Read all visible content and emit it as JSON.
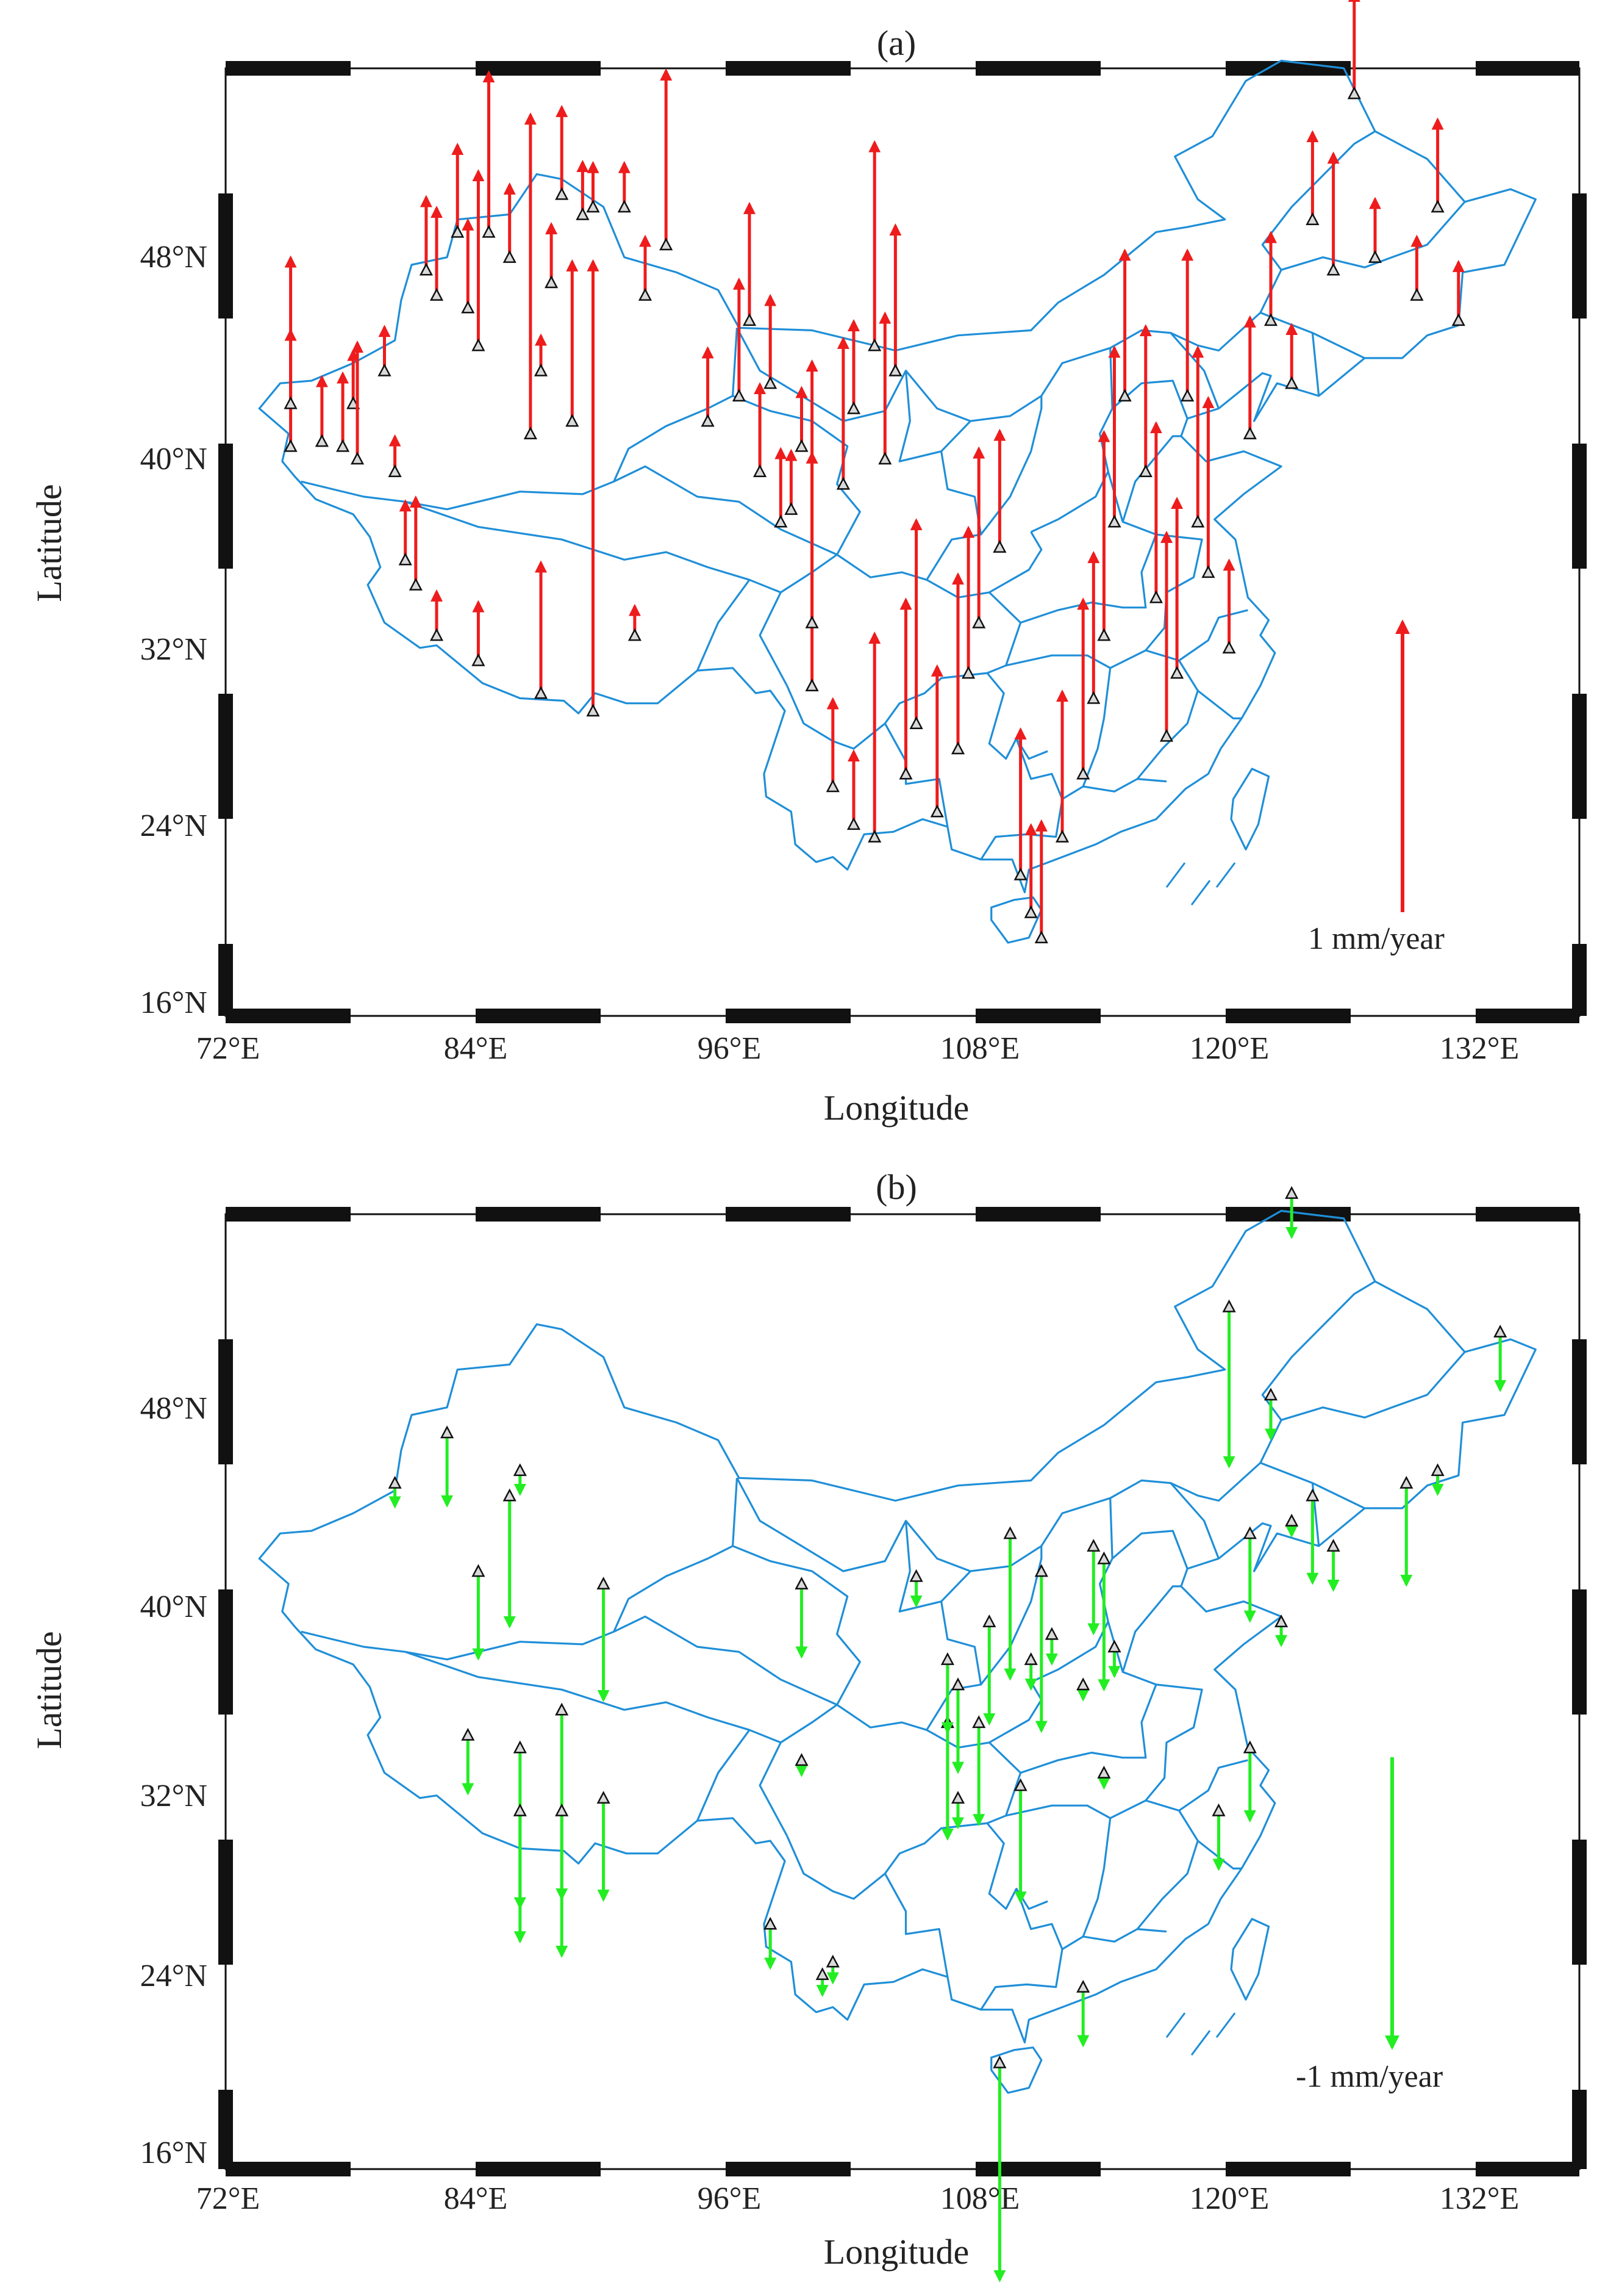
{
  "panels": [
    {
      "id": "a",
      "label": "(a)",
      "xlabel": "Longitude",
      "ylabel": "Latitude",
      "xticks": [
        "72°E",
        "84°E",
        "96°E",
        "108°E",
        "120°E",
        "132°E"
      ],
      "yticks": [
        "16°N",
        "24°N",
        "32°N",
        "40°N",
        "48°N"
      ],
      "scale_label": "1 mm/year",
      "arrow_color": "#ee1c1c",
      "direction": "up",
      "scale_mm": 1
    },
    {
      "id": "b",
      "label": "(b)",
      "xlabel": "Longitude",
      "ylabel": "Latitude",
      "xticks": [
        "72°E",
        "84°E",
        "96°E",
        "108°E",
        "120°E",
        "132°E"
      ],
      "yticks": [
        "16°N",
        "24°N",
        "32°N",
        "40°N",
        "48°N"
      ],
      "scale_label": "-1 mm/year",
      "arrow_color": "#22ee22",
      "direction": "down",
      "scale_mm": -1
    }
  ],
  "map_extent": {
    "lon": [
      70,
      135
    ],
    "lat": [
      15.5,
      55.5
    ]
  },
  "colors": {
    "boundary": "#1f8fd8",
    "uplift_arrow": "#ee1c1c",
    "subsidence_arrow": "#22ee22",
    "station_marker": "#d9d9d9"
  },
  "chart_data": [
    {
      "type": "scatter",
      "title": "(a)",
      "xlabel": "Longitude",
      "ylabel": "Latitude",
      "units": "mm/year",
      "scale_arrow": "1 mm/year",
      "stations": [
        [
          75.0,
          38.0,
          0.65
        ],
        [
          75.0,
          39.7,
          0.25
        ],
        [
          76.5,
          38.2,
          0.22
        ],
        [
          77.5,
          38.0,
          0.25
        ],
        [
          78.0,
          39.7,
          0.18
        ],
        [
          78.2,
          37.5,
          0.4
        ],
        [
          79.5,
          41.0,
          0.15
        ],
        [
          80.0,
          37.0,
          0.12
        ],
        [
          81.5,
          45.0,
          0.25
        ],
        [
          82.0,
          44.0,
          0.3
        ],
        [
          83.0,
          46.5,
          0.3
        ],
        [
          83.5,
          43.5,
          0.3
        ],
        [
          84.0,
          42.0,
          0.6
        ],
        [
          84.5,
          46.5,
          0.55
        ],
        [
          85.5,
          45.5,
          0.25
        ],
        [
          86.5,
          38.5,
          1.1
        ],
        [
          87.0,
          41.0,
          0.12
        ],
        [
          87.5,
          44.5,
          0.2
        ],
        [
          88.0,
          48.0,
          0.3
        ],
        [
          88.5,
          39.0,
          0.55
        ],
        [
          89.0,
          47.2,
          0.18
        ],
        [
          89.5,
          47.5,
          0.15
        ],
        [
          91.0,
          47.5,
          0.15
        ],
        [
          92.0,
          44.0,
          0.2
        ],
        [
          93.0,
          46.0,
          0.6
        ],
        [
          80.5,
          33.5,
          0.2
        ],
        [
          81.0,
          32.5,
          0.3
        ],
        [
          82.0,
          30.5,
          0.15
        ],
        [
          84.0,
          29.5,
          0.2
        ],
        [
          87.0,
          28.2,
          0.45
        ],
        [
          89.5,
          27.5,
          1.55
        ],
        [
          91.5,
          30.5,
          0.1
        ],
        [
          95.0,
          39.0,
          0.25
        ],
        [
          96.5,
          40.0,
          0.4
        ],
        [
          97.0,
          43.0,
          0.4
        ],
        [
          97.5,
          37.0,
          0.3
        ],
        [
          98.0,
          40.5,
          0.3
        ],
        [
          98.5,
          35.0,
          0.25
        ],
        [
          99.0,
          35.5,
          0.2
        ],
        [
          99.5,
          38.0,
          0.2
        ],
        [
          100.0,
          28.5,
          0.8
        ],
        [
          100.0,
          31.0,
          0.9
        ],
        [
          101.5,
          36.5,
          0.5
        ],
        [
          102.0,
          39.5,
          0.3
        ],
        [
          103.0,
          42.0,
          0.7
        ],
        [
          103.5,
          37.5,
          0.5
        ],
        [
          104.0,
          41.0,
          0.5
        ],
        [
          101.0,
          24.5,
          0.3
        ],
        [
          102.0,
          23.0,
          0.25
        ],
        [
          103.0,
          22.5,
          0.7
        ],
        [
          104.5,
          25.0,
          0.6
        ],
        [
          105.0,
          27.0,
          0.7
        ],
        [
          106.0,
          23.5,
          0.5
        ],
        [
          107.0,
          26.0,
          0.6
        ],
        [
          107.5,
          29.0,
          0.5
        ],
        [
          108.0,
          31.0,
          0.6
        ],
        [
          109.0,
          34.0,
          0.4
        ],
        [
          110.0,
          21.0,
          0.5
        ],
        [
          110.5,
          19.5,
          0.3
        ],
        [
          111.0,
          18.5,
          0.4
        ],
        [
          112.0,
          22.5,
          0.5
        ],
        [
          113.0,
          25.0,
          0.6
        ],
        [
          113.5,
          28.0,
          0.5
        ],
        [
          114.0,
          30.5,
          0.7
        ],
        [
          114.5,
          35.0,
          0.6
        ],
        [
          115.0,
          40.0,
          0.5
        ],
        [
          116.0,
          37.0,
          0.5
        ],
        [
          116.5,
          32.0,
          0.6
        ],
        [
          117.0,
          26.5,
          0.7
        ],
        [
          117.5,
          29.0,
          0.6
        ],
        [
          118.0,
          40.0,
          0.5
        ],
        [
          118.5,
          35.0,
          0.6
        ],
        [
          119.0,
          33.0,
          0.6
        ],
        [
          120.0,
          30.0,
          0.3
        ],
        [
          121.0,
          38.5,
          0.4
        ],
        [
          122.0,
          43.0,
          0.3
        ],
        [
          123.0,
          40.5,
          0.2
        ],
        [
          124.0,
          47.0,
          0.3
        ],
        [
          125.0,
          45.0,
          0.4
        ],
        [
          126.0,
          52.0,
          0.35
        ],
        [
          127.0,
          45.5,
          0.2
        ],
        [
          129.0,
          44.0,
          0.2
        ],
        [
          130.0,
          47.5,
          0.3
        ],
        [
          131.0,
          43.0,
          0.2
        ]
      ]
    },
    {
      "type": "scatter",
      "title": "(b)",
      "xlabel": "Longitude",
      "ylabel": "Latitude",
      "units": "mm/year",
      "scale_arrow": "-1 mm/year",
      "stations": [
        [
          80.0,
          42.5,
          -0.08
        ],
        [
          82.5,
          44.5,
          -0.25
        ],
        [
          84.0,
          39.0,
          -0.3
        ],
        [
          85.5,
          42.0,
          -0.45
        ],
        [
          86.0,
          43.0,
          -0.08
        ],
        [
          83.5,
          32.5,
          -0.2
        ],
        [
          86.0,
          32.0,
          -0.55
        ],
        [
          86.0,
          29.5,
          -0.45
        ],
        [
          88.0,
          33.5,
          -0.65
        ],
        [
          88.0,
          29.5,
          -0.5
        ],
        [
          90.0,
          30.0,
          -0.35
        ],
        [
          90.0,
          38.5,
          -0.4
        ],
        [
          98.0,
          25.0,
          -0.15
        ],
        [
          99.5,
          38.5,
          -0.25
        ],
        [
          99.5,
          31.5,
          -0.05
        ],
        [
          100.5,
          23.0,
          -0.07
        ],
        [
          101.0,
          23.5,
          -0.07
        ],
        [
          105.0,
          38.8,
          -0.1
        ],
        [
          106.5,
          33.0,
          -0.4
        ],
        [
          106.5,
          35.5,
          -0.25
        ],
        [
          107.0,
          30.0,
          -0.1
        ],
        [
          107.0,
          34.5,
          -0.3
        ],
        [
          108.0,
          33.0,
          -0.35
        ],
        [
          108.5,
          37.0,
          -0.35
        ],
        [
          109.5,
          40.5,
          -0.5
        ],
        [
          109.0,
          19.5,
          -0.75
        ],
        [
          110.0,
          30.5,
          -0.4
        ],
        [
          110.5,
          35.5,
          -0.1
        ],
        [
          111.0,
          39.0,
          -0.55
        ],
        [
          111.5,
          36.5,
          -0.1
        ],
        [
          113.0,
          34.5,
          -0.05
        ],
        [
          113.0,
          22.5,
          -0.2
        ],
        [
          113.5,
          40.0,
          -0.3
        ],
        [
          114.0,
          39.5,
          -0.45
        ],
        [
          114.5,
          36.0,
          -0.1
        ],
        [
          114.0,
          31.0,
          -0.05
        ],
        [
          119.5,
          29.5,
          -0.2
        ],
        [
          120.0,
          49.5,
          -0.55
        ],
        [
          121.0,
          32.0,
          -0.25
        ],
        [
          121.0,
          40.5,
          -0.3
        ],
        [
          122.0,
          46.0,
          -0.15
        ],
        [
          122.5,
          37.0,
          -0.08
        ],
        [
          123.0,
          41.0,
          -0.05
        ],
        [
          124.0,
          42.0,
          -0.3
        ],
        [
          125.0,
          40.0,
          -0.15
        ],
        [
          123.0,
          54.0,
          -0.15
        ],
        [
          128.5,
          42.5,
          -0.35
        ],
        [
          130.0,
          43.0,
          -0.08
        ],
        [
          133.0,
          48.5,
          -0.2
        ]
      ]
    }
  ]
}
